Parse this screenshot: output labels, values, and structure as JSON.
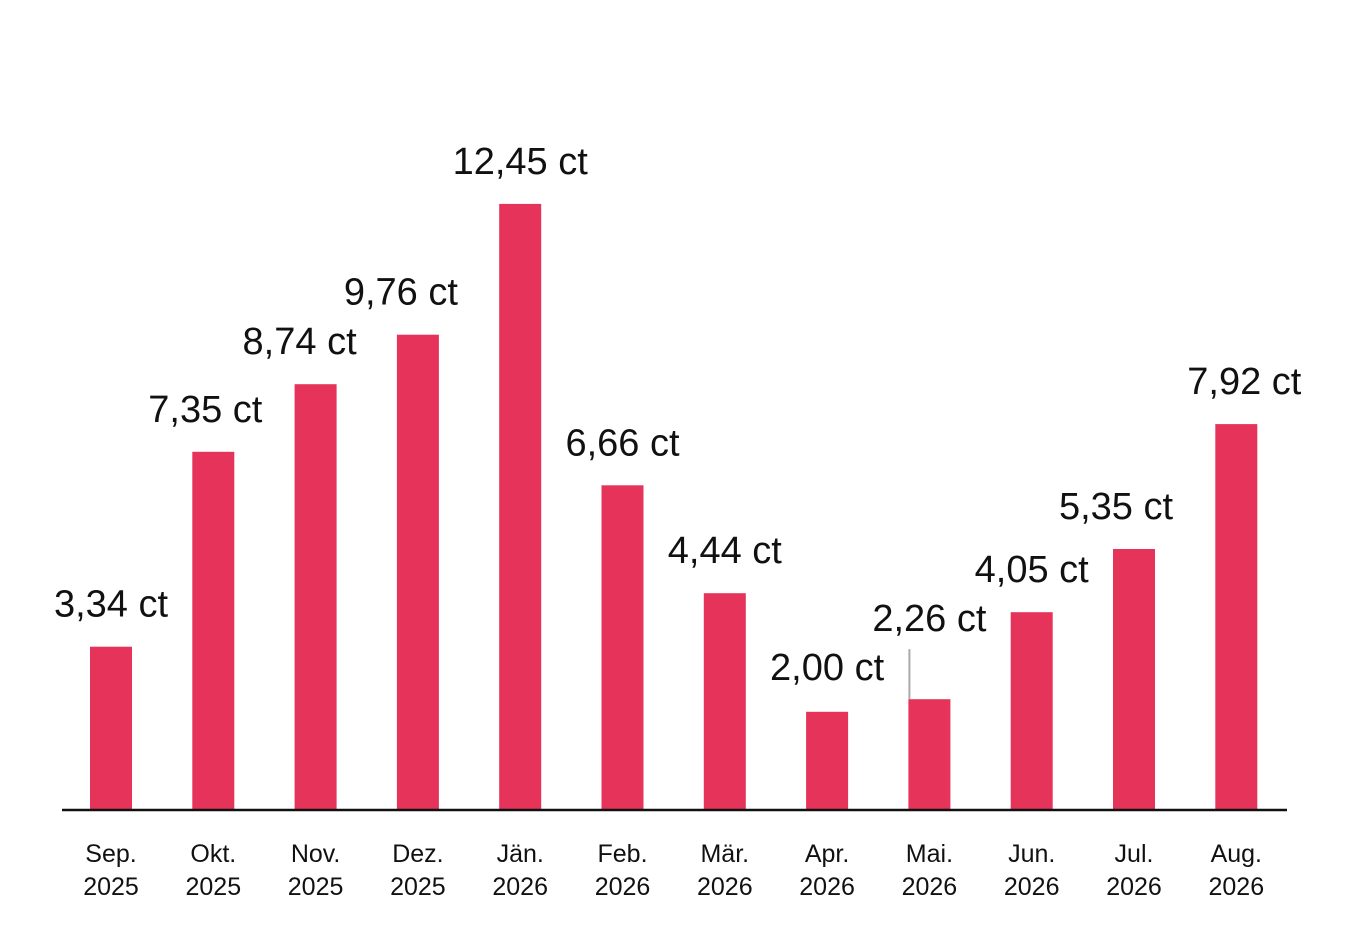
{
  "colors": {
    "bar": "#e5335a",
    "axis": "#111111",
    "leader": "#aaaaaa"
  },
  "chart_data": {
    "type": "bar",
    "title": "",
    "xlabel": "",
    "ylabel": "",
    "ylim": [
      0,
      13
    ],
    "grid": false,
    "legend": "none",
    "categories": [
      [
        "Sep.",
        "2025"
      ],
      [
        "Okt.",
        "2025"
      ],
      [
        "Nov.",
        "2025"
      ],
      [
        "Dez.",
        "2025"
      ],
      [
        "Jän.",
        "2026"
      ],
      [
        "Feb.",
        "2026"
      ],
      [
        "Mär.",
        "2026"
      ],
      [
        "Apr.",
        "2026"
      ],
      [
        "Mai.",
        "2026"
      ],
      [
        "Jun.",
        "2026"
      ],
      [
        "Jul.",
        "2026"
      ],
      [
        "Aug.",
        "2026"
      ]
    ],
    "values": [
      3.34,
      7.35,
      8.74,
      9.76,
      12.45,
      6.66,
      4.44,
      2.0,
      2.26,
      4.05,
      5.35,
      7.92
    ],
    "data_labels": [
      "3,34 ct",
      "7,35 ct",
      "8,74 ct",
      "9,76 ct",
      "12,45 ct",
      "6,66 ct",
      "4,44 ct",
      "2,00 ct",
      "2,26 ct",
      "4,05 ct",
      "5,35 ct",
      "7,92 ct"
    ]
  }
}
